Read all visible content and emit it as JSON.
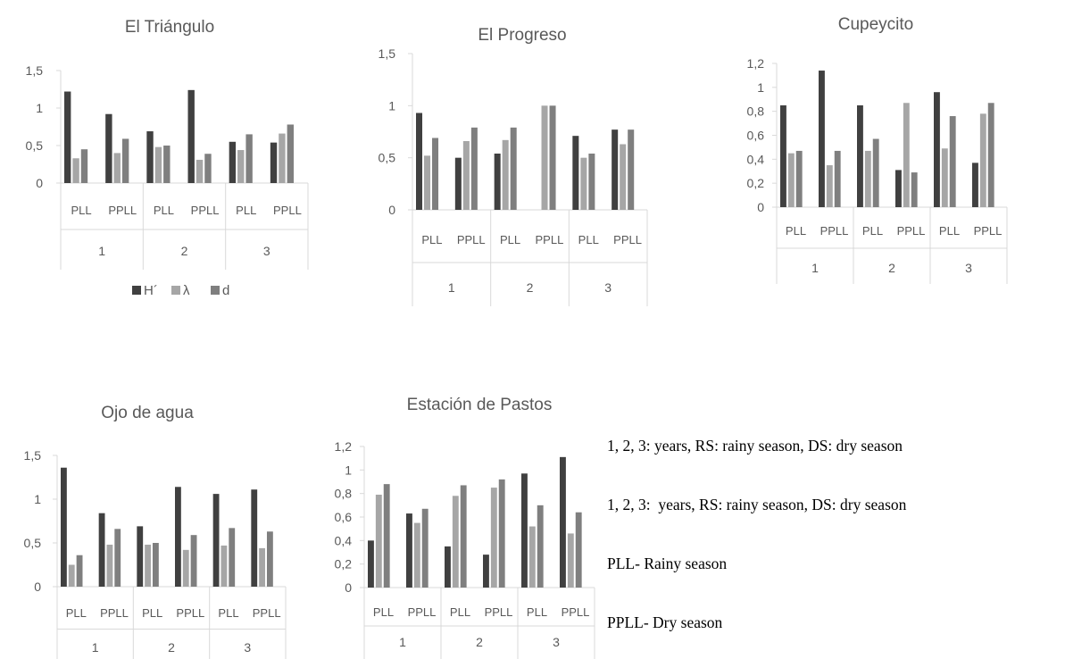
{
  "legend": [
    "H´",
    "λ",
    "d"
  ],
  "notes": [
    "1, 2, 3: years, RS: rainy season, DS: dry season",
    "1, 2, 3:  years, RS: rainy season, DS: dry season",
    "PLL- Rainy season",
    "PPLL- Dry season"
  ],
  "colors": {
    "H": "#404040",
    "lambda": "#a6a6a6",
    "d": "#7f7f7f",
    "axis": "#d9d9d9",
    "text": "#595959"
  },
  "chart_data": [
    {
      "type": "bar",
      "title": "El Triángulo",
      "groups": [
        "1",
        "2",
        "3"
      ],
      "categories": [
        "PLL",
        "PPLL",
        "PLL",
        "PPLL",
        "PLL",
        "PPLL"
      ],
      "yticks": [
        "0",
        "0,5",
        "1",
        "1,5"
      ],
      "ylim": [
        0,
        1.5
      ],
      "series": [
        {
          "name": "H´",
          "values": [
            1.22,
            0.92,
            0.69,
            1.24,
            0.55,
            0.54
          ]
        },
        {
          "name": "λ",
          "values": [
            0.33,
            0.4,
            0.48,
            0.31,
            0.44,
            0.66
          ]
        },
        {
          "name": "d",
          "values": [
            0.45,
            0.59,
            0.5,
            0.39,
            0.65,
            0.78
          ]
        }
      ],
      "legend": "bottom"
    },
    {
      "type": "bar",
      "title": "El Progreso",
      "groups": [
        "1",
        "2",
        "3"
      ],
      "categories": [
        "PLL",
        "PPLL",
        "PLL",
        "PPLL",
        "PLL",
        "PPLL"
      ],
      "yticks": [
        "0",
        "0,5",
        "1",
        "1,5"
      ],
      "ylim": [
        0,
        1.5
      ],
      "series": [
        {
          "values": [
            0.93,
            0.5,
            0.54,
            0.0,
            0.71,
            0.77
          ]
        },
        {
          "values": [
            0.52,
            0.66,
            0.67,
            1.0,
            0.5,
            0.63
          ]
        },
        {
          "values": [
            0.69,
            0.79,
            0.79,
            1.0,
            0.54,
            0.77
          ]
        }
      ]
    },
    {
      "type": "bar",
      "title": "Cupeycito",
      "groups": [
        "1",
        "2",
        "3"
      ],
      "categories": [
        "PLL",
        "PPLL",
        "PLL",
        "PPLL",
        "PLL",
        "PPLL"
      ],
      "yticks": [
        "0",
        "0,2",
        "0,4",
        "0,6",
        "0,8",
        "1",
        "1,2"
      ],
      "ylim": [
        0,
        1.2
      ],
      "series": [
        {
          "values": [
            0.85,
            1.14,
            0.85,
            0.31,
            0.96,
            0.37
          ]
        },
        {
          "values": [
            0.45,
            0.35,
            0.47,
            0.87,
            0.49,
            0.78
          ]
        },
        {
          "values": [
            0.47,
            0.47,
            0.57,
            0.29,
            0.76,
            0.87
          ]
        }
      ]
    },
    {
      "type": "bar",
      "title": "Ojo de agua",
      "groups": [
        "1",
        "2",
        "3"
      ],
      "categories": [
        "PLL",
        "PPLL",
        "PLL",
        "PPLL",
        "PLL",
        "PPLL"
      ],
      "yticks": [
        "0",
        "0,5",
        "1",
        "1,5"
      ],
      "ylim": [
        0,
        1.5
      ],
      "series": [
        {
          "values": [
            1.36,
            0.84,
            0.69,
            1.14,
            1.06,
            1.11
          ]
        },
        {
          "values": [
            0.25,
            0.48,
            0.48,
            0.42,
            0.47,
            0.44
          ]
        },
        {
          "values": [
            0.36,
            0.66,
            0.5,
            0.59,
            0.67,
            0.63
          ]
        }
      ]
    },
    {
      "type": "bar",
      "title": "Estación de Pastos",
      "groups": [
        "1",
        "2",
        "3"
      ],
      "categories": [
        "PLL",
        "PPLL",
        "PLL",
        "PPLL",
        "PLL",
        "PPLL"
      ],
      "yticks": [
        "0",
        "0,2",
        "0,4",
        "0,6",
        "0,8",
        "1",
        "1,2"
      ],
      "ylim": [
        0,
        1.2
      ],
      "series": [
        {
          "values": [
            0.4,
            0.63,
            0.35,
            0.28,
            0.97,
            1.11
          ]
        },
        {
          "values": [
            0.79,
            0.55,
            0.78,
            0.85,
            0.52,
            0.46
          ]
        },
        {
          "values": [
            0.88,
            0.67,
            0.87,
            0.92,
            0.7,
            0.64
          ]
        }
      ]
    }
  ]
}
